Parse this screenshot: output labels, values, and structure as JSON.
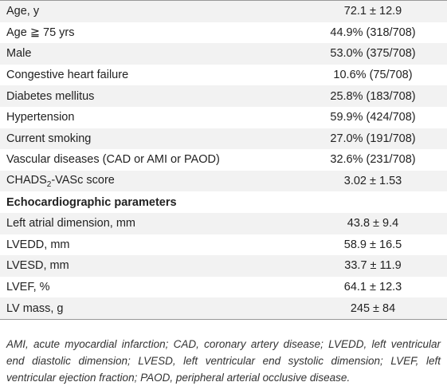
{
  "table": {
    "rows": [
      {
        "label": "Age, y",
        "value": "72.1 ± 12.9"
      },
      {
        "label": "Age ≧ 75 yrs",
        "value": "44.9% (318/708)"
      },
      {
        "label": "Male",
        "value": "53.0% (375/708)"
      },
      {
        "label": "Congestive heart failure",
        "value": "10.6% (75/708)"
      },
      {
        "label": "Diabetes mellitus",
        "value": "25.8% (183/708)"
      },
      {
        "label": "Hypertension",
        "value": "59.9% (424/708)"
      },
      {
        "label": "Current smoking",
        "value": "27.0% (191/708)"
      },
      {
        "label": "Vascular diseases (CAD or AMI or PAOD)",
        "value": "32.6% (231/708)"
      },
      {
        "label_parts": [
          "CHADS",
          "2",
          "-VASc score"
        ],
        "value": "3.02 ± 1.53"
      },
      {
        "section": "Echocardiographic parameters"
      },
      {
        "label": "Left atrial dimension, mm",
        "value": "43.8 ± 9.4"
      },
      {
        "label": "LVEDD, mm",
        "value": "58.9 ± 16.5"
      },
      {
        "label": "LVESD, mm",
        "value": "33.7 ± 11.9"
      },
      {
        "label": "LVEF, %",
        "value": "64.1 ± 12.3"
      },
      {
        "label": "LV mass, g",
        "value": "245 ± 84"
      }
    ],
    "footnote": "AMI, acute myocardial infarction; CAD, coronary artery disease; LVEDD, left ventricular end diastolic dimension; LVESD, left ventricular end systolic dimension; LVEF, left ventricular ejection fraction; PAOD, peripheral arterial occlusive disease."
  }
}
